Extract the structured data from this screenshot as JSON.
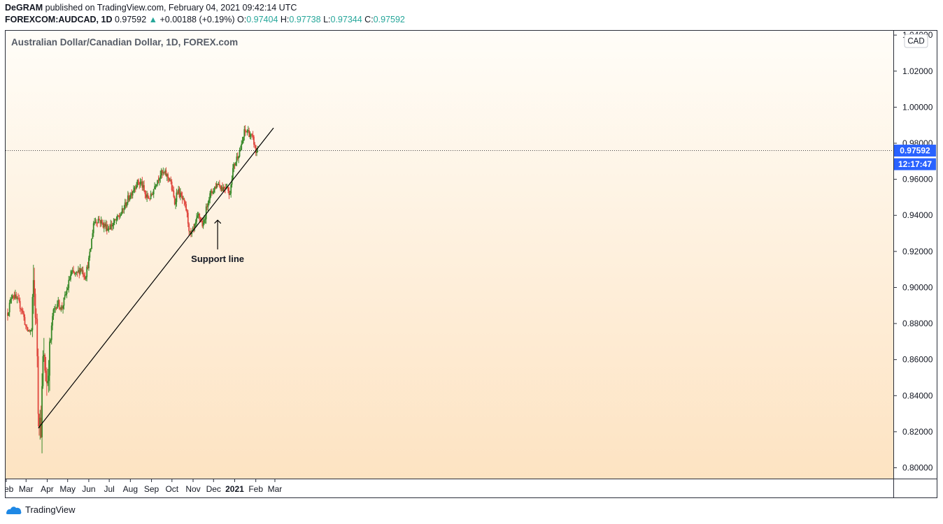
{
  "header": {
    "author": "DeGRAM",
    "published_text": "published on TradingView.com, February 04, 2021 09:42:14 UTC",
    "symbol": "FOREXCOM:AUDCAD, 1D",
    "last": "0.97592",
    "change": "+0.00188 (+0.19%)",
    "open_label": "O:",
    "open": "0.97404",
    "high_label": "H:",
    "high": "0.97738",
    "low_label": "L:",
    "low": "0.97344",
    "close_label": "C:",
    "close": "0.97592"
  },
  "footer": {
    "brand": "TradingView"
  },
  "colors": {
    "up": "#26a69a",
    "down": "#ef5350",
    "up_candle": "#3a8a2a",
    "down_candle": "#e0483f",
    "price_tag": "#2962ff",
    "line": "#000000"
  },
  "icons": {
    "logo": "tradingview-logo-icon",
    "arrow": "up-arrow-icon"
  },
  "chart_data": {
    "type": "candlestick",
    "title": "Australian Dollar/Canadian Dollar, 1D, FOREX.com",
    "currency_label": "CAD",
    "xlabel": "",
    "ylabel": "",
    "ylim": [
      0.794,
      1.0424
    ],
    "y_ticks": [
      "1.04000",
      "1.02000",
      "1.00000",
      "0.98000",
      "0.96000",
      "0.94000",
      "0.92000",
      "0.90000",
      "0.88000",
      "0.86000",
      "0.84000",
      "0.82000",
      "0.80000"
    ],
    "x_ticks": [
      "Feb",
      "Mar",
      "Apr",
      "May",
      "Jun",
      "Jul",
      "Aug",
      "Sep",
      "Oct",
      "Nov",
      "Dec",
      "2021",
      "Feb",
      "Mar"
    ],
    "last_price_tag": "0.97592",
    "countdown_tag": "12:17:47",
    "current_price_line": 0.97592,
    "series_path": [
      [
        "2020-02-03",
        0.886
      ],
      [
        "2020-02-10",
        0.897
      ],
      [
        "2020-02-24",
        0.888
      ],
      [
        "2020-03-02",
        0.876
      ],
      [
        "2020-03-09",
        0.876
      ],
      [
        "2020-03-12",
        0.904
      ],
      [
        "2020-03-17",
        0.872
      ],
      [
        "2020-03-19",
        0.831
      ],
      [
        "2020-03-23",
        0.823
      ],
      [
        "2020-03-26",
        0.862
      ],
      [
        "2020-04-01",
        0.846
      ],
      [
        "2020-04-03",
        0.857
      ],
      [
        "2020-04-09",
        0.885
      ],
      [
        "2020-04-16",
        0.892
      ],
      [
        "2020-04-22",
        0.888
      ],
      [
        "2020-04-29",
        0.897
      ],
      [
        "2020-05-06",
        0.908
      ],
      [
        "2020-05-14",
        0.907
      ],
      [
        "2020-05-20",
        0.911
      ],
      [
        "2020-05-27",
        0.906
      ],
      [
        "2020-06-03",
        0.919
      ],
      [
        "2020-06-08",
        0.936
      ],
      [
        "2020-06-15",
        0.938
      ],
      [
        "2020-06-22",
        0.935
      ],
      [
        "2020-06-29",
        0.933
      ],
      [
        "2020-07-06",
        0.935
      ],
      [
        "2020-07-13",
        0.938
      ],
      [
        "2020-07-20",
        0.942
      ],
      [
        "2020-07-27",
        0.948
      ],
      [
        "2020-08-03",
        0.953
      ],
      [
        "2020-08-10",
        0.958
      ],
      [
        "2020-08-17",
        0.958
      ],
      [
        "2020-08-24",
        0.95
      ],
      [
        "2020-08-31",
        0.95
      ],
      [
        "2020-09-07",
        0.958
      ],
      [
        "2020-09-14",
        0.963
      ],
      [
        "2020-09-21",
        0.963
      ],
      [
        "2020-09-28",
        0.96
      ],
      [
        "2020-10-05",
        0.947
      ],
      [
        "2020-10-09",
        0.954
      ],
      [
        "2020-10-16",
        0.949
      ],
      [
        "2020-10-22",
        0.943
      ],
      [
        "2020-10-28",
        0.928
      ],
      [
        "2020-11-02",
        0.932
      ],
      [
        "2020-11-09",
        0.94
      ],
      [
        "2020-11-16",
        0.934
      ],
      [
        "2020-11-23",
        0.949
      ],
      [
        "2020-11-30",
        0.954
      ],
      [
        "2020-12-07",
        0.958
      ],
      [
        "2020-12-14",
        0.955
      ],
      [
        "2020-12-21",
        0.957
      ],
      [
        "2020-12-24",
        0.95
      ],
      [
        "2020-12-29",
        0.965
      ],
      [
        "2021-01-05",
        0.973
      ],
      [
        "2021-01-11",
        0.978
      ],
      [
        "2021-01-15",
        0.986
      ],
      [
        "2021-01-20",
        0.987
      ],
      [
        "2021-01-26",
        0.983
      ],
      [
        "2021-01-29",
        0.981
      ],
      [
        "2021-02-01",
        0.975
      ],
      [
        "2021-02-04",
        0.97592
      ]
    ],
    "support_line": {
      "from": [
        "2020-03-19",
        0.822
      ],
      "to": [
        "2021-02-27",
        0.9885
      ]
    },
    "annotation": {
      "text": "Support line",
      "arrow_to": [
        "2020-12-07",
        0.9385
      ],
      "label_at": [
        "2020-12-07",
        0.918
      ]
    }
  }
}
